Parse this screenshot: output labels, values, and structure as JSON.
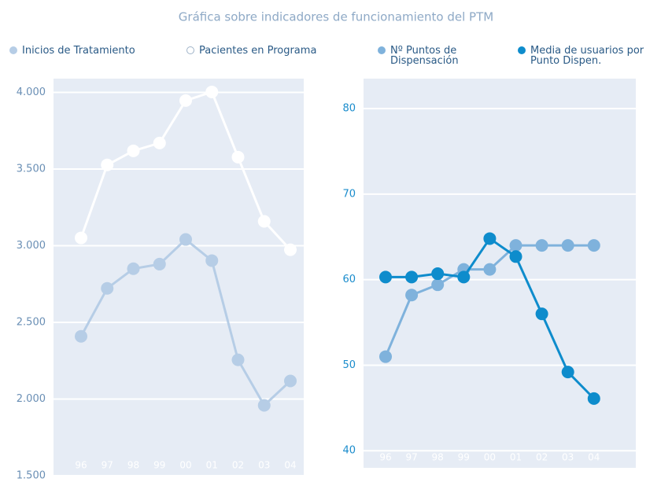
{
  "title": "Gráfica sobre indicadores de funcionamiento del PTM",
  "chart_data": [
    {
      "type": "line",
      "categories": [
        "96",
        "97",
        "98",
        "99",
        "00",
        "01",
        "02",
        "03",
        "04"
      ],
      "ylim": [
        1500,
        4090
      ],
      "yticks": [
        {
          "value": 1500,
          "label": "1.500"
        },
        {
          "value": 2000,
          "label": "2.000"
        },
        {
          "value": 2500,
          "label": "2.500"
        },
        {
          "value": 3000,
          "label": "3.000"
        },
        {
          "value": 3500,
          "label": "3.500"
        },
        {
          "value": 4000,
          "label": "4.000"
        }
      ],
      "grid": true,
      "series": [
        {
          "name": "Inicios de Tratamiento",
          "color": "#b6cde6",
          "values": [
            2409,
            2722,
            2850,
            2880,
            3041,
            2903,
            2256,
            1959,
            2118
          ]
        },
        {
          "name": "Pacientes en Programa",
          "color": "#ffffff",
          "values": [
            3051,
            3527,
            3619,
            3670,
            3947,
            4003,
            3578,
            3159,
            2974
          ]
        }
      ]
    },
    {
      "type": "line",
      "categories": [
        "96",
        "97",
        "98",
        "99",
        "00",
        "01",
        "02",
        "03",
        "04"
      ],
      "ylim": [
        38,
        83.5
      ],
      "yticks": [
        40,
        50,
        60,
        70,
        80
      ],
      "grid": true,
      "series": [
        {
          "name": "Nº Puntos de Dispensación",
          "color": "#7fb2dc",
          "values": [
            51,
            58.2,
            59.4,
            61.2,
            61.2,
            64,
            64,
            64,
            64
          ]
        },
        {
          "name": "Media de usuarios por Punto Dispen.",
          "color": "#0e8ccc",
          "values": [
            60.3,
            60.3,
            60.7,
            60.3,
            64.8,
            62.7,
            56,
            49.2,
            46.1
          ]
        }
      ]
    }
  ]
}
